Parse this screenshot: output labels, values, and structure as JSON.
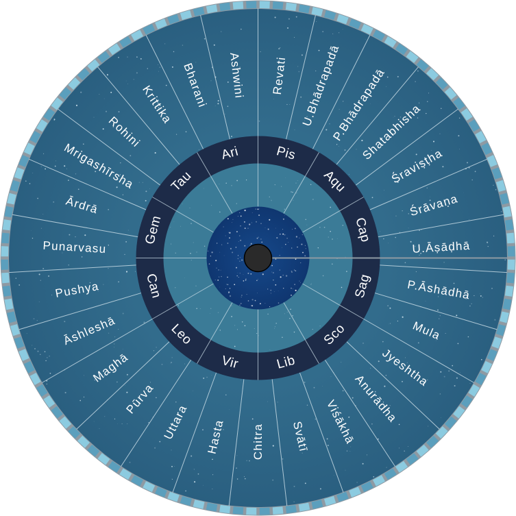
{
  "wheel": {
    "nakshatras": [
      "Revati",
      "U.Bhādrapadā",
      "P.Bhādrapadā",
      "Shatabhisha",
      "Śraviṣṭha",
      "Śrāvaṇa",
      "U.Āṣāḍhā",
      "P.Āshādhā",
      "Mula",
      "Jyeshtha",
      "Anurādha",
      "Viśākhā",
      "Svātī",
      "Chitra",
      "Hasta",
      "Uttara",
      "Pūrva",
      "Maghā",
      "Āshleshā",
      "Pushya",
      "Punarvasu",
      "Ārdrā",
      "Mrigashīrsha",
      "Rohini",
      "Krittika",
      "Bharani",
      "Ashwini"
    ],
    "signs": [
      "Pis",
      "Aqu",
      "Cap",
      "Sag",
      "Sco",
      "Lib",
      "Vir",
      "Leo",
      "Can",
      "Gem",
      "Tau",
      "Ari"
    ],
    "colors": {
      "outer_band": "#2f6788",
      "inner_band": "#3b7b97",
      "sign_band": "#1d2b48",
      "center_sky": "#123f7c",
      "hub": "#2a2a2a",
      "rim_light": "#8ccbe0",
      "rim_dark": "#5b9fbd",
      "edge": "#8e9aa3",
      "divider": "#cfe1ea"
    }
  }
}
